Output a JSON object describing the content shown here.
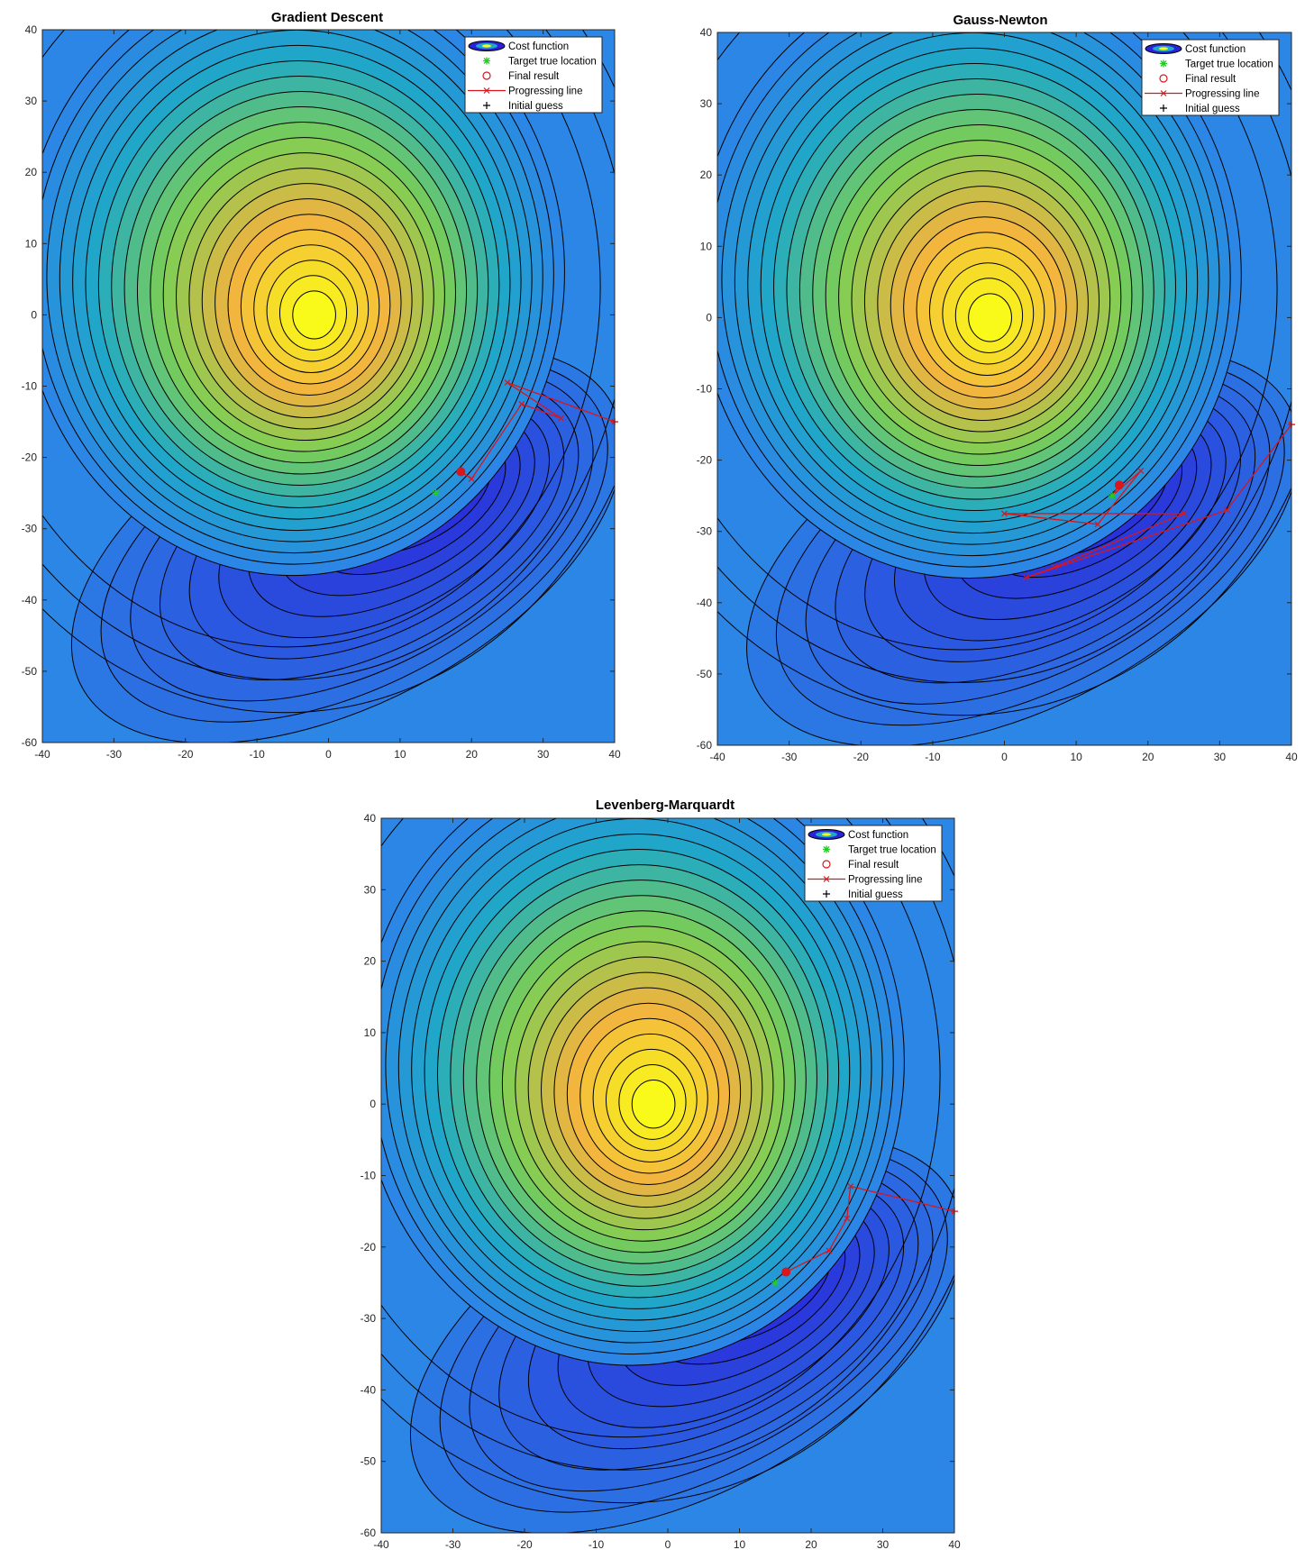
{
  "figure": {
    "colors": {
      "background_low": "#2b86e6",
      "valley_dark": "#2a22d8",
      "teal_mid": "#1fa8c8",
      "green_mid": "#7ccf55",
      "orange_mid": "#f2b240",
      "peak_yellow": "#f9f91a",
      "contour_line": "#000000",
      "path": "#d9161c",
      "target": "#22cc22"
    }
  },
  "chart_data": [
    {
      "type": "contour",
      "title": "Gradient Descent",
      "xlim": [
        -40,
        40
      ],
      "ylim": [
        -60,
        40
      ],
      "xticks": [
        "-40",
        "-30",
        "-20",
        "-10",
        "0",
        "10",
        "20",
        "30",
        "40"
      ],
      "yticks": [
        "40",
        "30",
        "20",
        "10",
        "0",
        "-10",
        "-20",
        "-30",
        "-40",
        "-50",
        "-60"
      ],
      "grid": false,
      "legend_position": "top-right",
      "legend": [
        "Cost function",
        "Target true location",
        "Final result",
        "Progressing line",
        "Initial guess"
      ],
      "target": [
        15,
        -25
      ],
      "initial_guess": [
        40,
        -15
      ],
      "final_result": [
        18.5,
        -22
      ],
      "path": [
        [
          40,
          -15
        ],
        [
          25,
          -9.5
        ],
        [
          32.5,
          -14.5
        ],
        [
          27,
          -12.5
        ],
        [
          20,
          -23
        ],
        [
          18.5,
          -22
        ]
      ]
    },
    {
      "type": "contour",
      "title": "Gauss-Newton",
      "xlim": [
        -40,
        40
      ],
      "ylim": [
        -60,
        40
      ],
      "xticks": [
        "-40",
        "-30",
        "-20",
        "-10",
        "0",
        "10",
        "20",
        "30",
        "40"
      ],
      "yticks": [
        "40",
        "30",
        "20",
        "10",
        "0",
        "-10",
        "-20",
        "-30",
        "-40",
        "-50",
        "-60"
      ],
      "grid": false,
      "legend_position": "top-right",
      "legend": [
        "Cost function",
        "Target true location",
        "Final result",
        "Progressing line",
        "Initial guess"
      ],
      "target": [
        15,
        -25
      ],
      "initial_guess": [
        40,
        -15
      ],
      "final_result": [
        16,
        -23.5
      ],
      "path": [
        [
          40,
          -15
        ],
        [
          31,
          -27
        ],
        [
          3,
          -36.5
        ],
        [
          7,
          -35
        ],
        [
          25,
          -27.5
        ],
        [
          0,
          -27.5
        ],
        [
          13,
          -29
        ],
        [
          19,
          -21.5
        ],
        [
          15,
          -25
        ],
        [
          16,
          -23.5
        ]
      ]
    },
    {
      "type": "contour",
      "title": "Levenberg-Marquardt",
      "xlim": [
        -40,
        40
      ],
      "ylim": [
        -60,
        40
      ],
      "xticks": [
        "-40",
        "-30",
        "-20",
        "-10",
        "0",
        "10",
        "20",
        "30",
        "40"
      ],
      "yticks": [
        "40",
        "30",
        "20",
        "10",
        "0",
        "-10",
        "-20",
        "-30",
        "-40",
        "-50",
        "-60"
      ],
      "grid": false,
      "legend_position": "top-right",
      "legend": [
        "Cost function",
        "Target true location",
        "Final result",
        "Progressing line",
        "Initial guess"
      ],
      "target": [
        15,
        -25
      ],
      "initial_guess": [
        40,
        -15
      ],
      "final_result": [
        16.5,
        -23.5
      ],
      "path": [
        [
          40,
          -15
        ],
        [
          25.5,
          -11.5
        ],
        [
          25,
          -16
        ],
        [
          22.5,
          -20.5
        ],
        [
          16.5,
          -23.5
        ]
      ]
    }
  ]
}
